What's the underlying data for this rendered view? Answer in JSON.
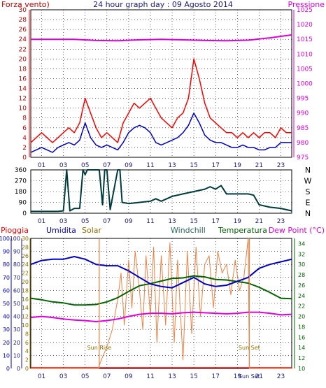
{
  "colors": {
    "dark_red": "#c00000",
    "red": "#ff0000",
    "blue": "#0000c8",
    "magenta": "#e000e0",
    "dark_teal": "#003c3c",
    "green": "#006400",
    "olive": "#8c7000",
    "orange": "#f08040",
    "navy": "#1a1a80",
    "grid": "#000000"
  },
  "chart_data": [
    {
      "type": "line",
      "title": "24 hour graph day : 09 Agosto 2014",
      "left_axis_label": "Forza vento)",
      "right_axis_label": "Pressione",
      "x_ticks": [
        "01",
        "03",
        "05",
        "07",
        "09",
        "11",
        "13",
        "15",
        "17",
        "19",
        "21",
        "23"
      ],
      "ylim_left": [
        0,
        30
      ],
      "y_ticks_left": [
        "0",
        "2",
        "4",
        "6",
        "8",
        "10",
        "12",
        "14",
        "16",
        "18",
        "20",
        "22",
        "24",
        "26",
        "28",
        "30"
      ],
      "ylim_right": [
        975,
        1025
      ],
      "y_ticks_right": [
        "975",
        "980",
        "985",
        "990",
        "995",
        "1000",
        "1005",
        "1010",
        "1015",
        "1020",
        "1025"
      ],
      "series": [
        {
          "name": "gust",
          "axis": "left",
          "color": "#ff0000",
          "hours": [
            0,
            0.5,
            1,
            1.5,
            2,
            2.5,
            3,
            3.5,
            4,
            4.5,
            5,
            5.5,
            6,
            6.5,
            7,
            7.5,
            8,
            8.5,
            9,
            9.5,
            10,
            10.5,
            11,
            11.5,
            12,
            12.5,
            13,
            13.5,
            14,
            14.5,
            15,
            15.5,
            16,
            16.5,
            17,
            17.5,
            18,
            18.5,
            19,
            19.5,
            20,
            20.5,
            21,
            21.5,
            22,
            22.5,
            23,
            23.5,
            24
          ],
          "values": [
            3,
            4,
            5,
            4,
            3,
            4,
            5,
            6,
            5,
            7,
            12,
            9,
            6,
            4,
            5,
            4,
            3,
            7,
            9,
            11,
            10,
            11,
            12,
            10,
            8,
            7,
            6,
            8,
            9,
            12,
            20,
            16,
            11,
            8,
            7,
            6,
            5,
            5,
            4,
            5,
            4,
            5,
            4,
            5,
            5,
            4,
            6,
            5,
            5
          ]
        },
        {
          "name": "wind",
          "axis": "left",
          "color": "#0000c8",
          "hours": [
            0,
            0.5,
            1,
            1.5,
            2,
            2.5,
            3,
            3.5,
            4,
            4.5,
            5,
            5.5,
            6,
            6.5,
            7,
            7.5,
            8,
            8.5,
            9,
            9.5,
            10,
            10.5,
            11,
            11.5,
            12,
            12.5,
            13,
            13.5,
            14,
            14.5,
            15,
            15.5,
            16,
            16.5,
            17,
            17.5,
            18,
            18.5,
            19,
            19.5,
            20,
            20.5,
            21,
            21.5,
            22,
            22.5,
            23,
            23.5,
            24
          ],
          "values": [
            1,
            1.5,
            2,
            1.5,
            1,
            2,
            2.5,
            3,
            2.5,
            3.5,
            7,
            4,
            2.5,
            2,
            2.5,
            2,
            1.5,
            3,
            5,
            6,
            6.5,
            6,
            5,
            3,
            2.5,
            3,
            3.5,
            4,
            5,
            6.5,
            9,
            7,
            4.5,
            3.5,
            3,
            3,
            2.5,
            2,
            2,
            2.5,
            2,
            2,
            1.5,
            1.5,
            2,
            2,
            3,
            3,
            3
          ]
        },
        {
          "name": "pressure",
          "axis": "right",
          "color": "#e000e0",
          "hours": [
            0,
            2,
            4,
            6,
            8,
            10,
            12,
            14,
            16,
            18,
            20,
            22,
            23,
            24
          ],
          "values": [
            1015,
            1015,
            1015,
            1014.6,
            1014.5,
            1014.8,
            1015,
            1014.8,
            1014.6,
            1014.5,
            1014.7,
            1015.5,
            1016,
            1016.5
          ]
        }
      ]
    },
    {
      "type": "line",
      "title": "",
      "x_ticks": [
        "01",
        "03",
        "05",
        "07",
        "09",
        "11",
        "13",
        "15",
        "17",
        "19",
        "21",
        "23"
      ],
      "ylim": [
        0,
        360
      ],
      "y_ticks": [
        "0",
        "90",
        "180",
        "270",
        "360"
      ],
      "right_labels": [
        "N",
        "W",
        "S",
        "E",
        "N"
      ],
      "series": [
        {
          "name": "direction",
          "color": "#003c3c",
          "hours": [
            0,
            2.5,
            3,
            3.3,
            3.6,
            4,
            4.5,
            4.8,
            5,
            5.2,
            6.3,
            6.6,
            6.8,
            7,
            7.3,
            8,
            8.2,
            8.4,
            9,
            11,
            11.5,
            12,
            13,
            14,
            15,
            16,
            16.5,
            17,
            17.5,
            18,
            19,
            20,
            20.5,
            21,
            22,
            23,
            24
          ],
          "values": [
            15,
            15,
            20,
            360,
            20,
            40,
            40,
            360,
            320,
            360,
            360,
            70,
            360,
            360,
            30,
            360,
            360,
            90,
            80,
            100,
            120,
            100,
            140,
            160,
            180,
            200,
            220,
            200,
            230,
            160,
            160,
            160,
            150,
            70,
            50,
            40,
            20
          ]
        }
      ]
    },
    {
      "type": "line",
      "title": "",
      "x_ticks": [
        "01",
        "03",
        "05",
        "07",
        "09",
        "11",
        "13",
        "15",
        "17",
        "19",
        "21",
        "23"
      ],
      "sun_rise_label": "Sun Rise",
      "sun_set_label": "Sun Set",
      "sun_set_tick": "Sun Set",
      "sun_rise_hour": 6.3,
      "sun_set_hour": 20.1,
      "axis_labels": {
        "pioggia": "Pioggia",
        "umidita": "Umidita",
        "solar": "Solar",
        "windchill": "Windchill",
        "temperatura": "Temperatura",
        "dewpoint": "Dew Point (°C)"
      },
      "rain_ticks": [
        "0",
        "10",
        "20",
        "30",
        "40",
        "50",
        "60",
        "70",
        "80",
        "90",
        "100"
      ],
      "hum_ticks": [
        "0",
        "10",
        "20",
        "30",
        "40",
        "50",
        "60",
        "70",
        "80",
        "90",
        "100"
      ],
      "solar_ticks": [
        "0",
        "2",
        "4",
        "6",
        "8",
        "10",
        "12",
        "14",
        "16",
        "18",
        "20",
        "22",
        "24",
        "26",
        "28",
        "30"
      ],
      "temp_ticks": [
        "10",
        "12",
        "14",
        "16",
        "18",
        "20",
        "22",
        "24",
        "26",
        "28",
        "30",
        "32",
        "34"
      ],
      "hum_range": [
        0,
        100
      ],
      "temp_range": [
        10,
        35
      ],
      "series": [
        {
          "name": "Umidita",
          "color": "#0000c8",
          "hours": [
            0,
            1,
            2,
            3,
            4,
            5,
            6,
            7,
            8,
            9,
            10,
            11,
            12,
            13,
            14,
            15,
            16,
            17,
            18,
            19,
            20,
            21,
            22,
            23,
            24
          ],
          "values": [
            80,
            83,
            84,
            84,
            86,
            84,
            80,
            79,
            79,
            75,
            70,
            65,
            63,
            62,
            66,
            70,
            65,
            63,
            64,
            67,
            70,
            77,
            80,
            82,
            84
          ]
        },
        {
          "name": "Temperatura",
          "color": "#006400",
          "hours": [
            0,
            1,
            2,
            3,
            4,
            5,
            6,
            7,
            8,
            9,
            10,
            11,
            12,
            13,
            14,
            15,
            16,
            17,
            18,
            19,
            20,
            21,
            22,
            23,
            24
          ],
          "values": [
            23.5,
            23.2,
            22.8,
            22.6,
            22.2,
            22.2,
            22.3,
            22.8,
            23.6,
            24.8,
            25.9,
            26.3,
            26.8,
            27.3,
            27.4,
            27.8,
            27.6,
            27.1,
            27.0,
            26.7,
            26.4,
            25.6,
            24.6,
            23.5,
            23.4
          ]
        },
        {
          "name": "Dew Point",
          "color": "#e000e0",
          "hours": [
            0,
            1,
            2,
            3,
            4,
            5,
            6,
            7,
            8,
            9,
            10,
            11,
            12,
            13,
            14,
            15,
            16,
            17,
            18,
            19,
            20,
            21,
            22,
            23,
            24
          ],
          "values": [
            19.8,
            20.0,
            19.8,
            19.5,
            19.3,
            19.2,
            19.0,
            19.2,
            19.5,
            20.0,
            20.4,
            20.6,
            20.6,
            20.5,
            20.7,
            20.8,
            20.7,
            20.6,
            20.5,
            20.6,
            20.8,
            20.8,
            20.6,
            20.3,
            20.4
          ]
        },
        {
          "name": "Solar",
          "color": "#f08040",
          "hours": [
            0,
            6.2,
            6.5,
            7,
            7.5,
            8,
            8.3,
            8.6,
            9,
            9.3,
            9.6,
            10,
            10.3,
            10.6,
            11,
            11.3,
            11.6,
            12,
            12.4,
            12.8,
            13.2,
            13.5,
            14,
            14.4,
            14.8,
            15.2,
            15.6,
            16,
            16.4,
            16.8,
            17.2,
            17.6,
            18,
            18.4,
            18.8,
            19.2,
            19.6,
            20,
            20.1,
            24
          ],
          "values": [
            0,
            0,
            2,
            5,
            9,
            16,
            22,
            10,
            25,
            14,
            27,
            18,
            9,
            26,
            12,
            28,
            6,
            26,
            10,
            29,
            6,
            25,
            2,
            27,
            8,
            28,
            12,
            24,
            26,
            14,
            27,
            22,
            24,
            17,
            25,
            18,
            21,
            30,
            0,
            0
          ]
        }
      ]
    }
  ]
}
